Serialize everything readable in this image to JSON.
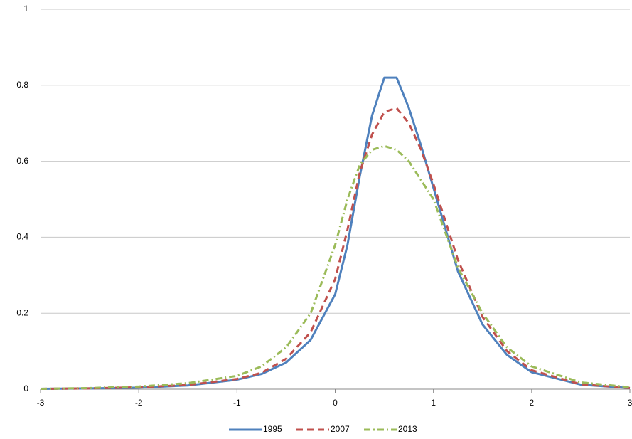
{
  "chart_data": {
    "type": "line",
    "x": [
      -3,
      -2.5,
      -2,
      -1.5,
      -1,
      -0.75,
      -0.5,
      -0.25,
      0,
      0.125,
      0.25,
      0.375,
      0.5,
      0.625,
      0.75,
      0.875,
      1,
      1.25,
      1.5,
      1.75,
      2,
      2.5,
      3
    ],
    "series": [
      {
        "name": "1995",
        "color": "#4f81bd",
        "dash": "solid",
        "values": [
          0.001,
          0.002,
          0.004,
          0.01,
          0.025,
          0.04,
          0.07,
          0.13,
          0.25,
          0.38,
          0.56,
          0.72,
          0.82,
          0.82,
          0.74,
          0.64,
          0.53,
          0.31,
          0.17,
          0.09,
          0.045,
          0.012,
          0.003
        ]
      },
      {
        "name": "2007",
        "color": "#c0504d",
        "dash": "dash",
        "values": [
          0.001,
          0.002,
          0.005,
          0.011,
          0.027,
          0.043,
          0.08,
          0.15,
          0.29,
          0.42,
          0.57,
          0.67,
          0.73,
          0.74,
          0.7,
          0.63,
          0.54,
          0.34,
          0.19,
          0.1,
          0.05,
          0.013,
          0.003
        ]
      },
      {
        "name": "2013",
        "color": "#9bbb59",
        "dash": "dashdot",
        "values": [
          0.001,
          0.003,
          0.007,
          0.016,
          0.035,
          0.06,
          0.11,
          0.2,
          0.38,
          0.5,
          0.59,
          0.63,
          0.64,
          0.63,
          0.6,
          0.55,
          0.5,
          0.32,
          0.2,
          0.11,
          0.06,
          0.018,
          0.005
        ]
      }
    ],
    "xlim": [
      -3,
      3
    ],
    "xticks": [
      -3,
      -2,
      -1,
      0,
      1,
      2,
      3
    ],
    "ylim": [
      0,
      1
    ],
    "yticks": [
      0,
      0.2,
      0.4,
      0.6,
      0.8,
      1
    ],
    "grid": true,
    "legend": "bottom"
  }
}
